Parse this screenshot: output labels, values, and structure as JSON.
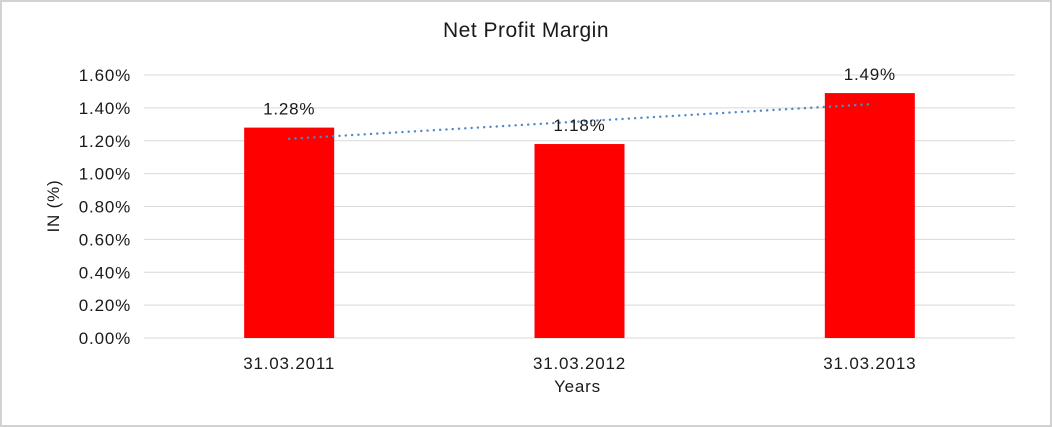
{
  "window": {
    "background": "#ffffff",
    "border_color": "#d2d2d2"
  },
  "chart_data": {
    "type": "bar",
    "title": "Net Profit Margin",
    "categories": [
      "31.03.2011",
      "31.03.2012",
      "31.03.2013"
    ],
    "values": [
      1.28,
      1.18,
      1.49
    ],
    "data_labels": [
      "1.28%",
      "1.18%",
      "1.49%"
    ],
    "xlabel": "Years",
    "ylabel": "IN (%)",
    "ylim": [
      0,
      1.6
    ],
    "yticks": [
      0,
      0.2,
      0.4,
      0.6,
      0.8,
      1.0,
      1.2,
      1.4,
      1.6
    ],
    "ytick_labels": [
      "0.00%",
      "0.20%",
      "0.40%",
      "0.60%",
      "0.80%",
      "1.00%",
      "1.20%",
      "1.40%",
      "1.60%"
    ],
    "grid": true,
    "legend": "none",
    "bar_color": "#ff0000",
    "gridline_color": "#d9d9d9",
    "text_color": "#1a1a1a",
    "trendline": {
      "type": "linear",
      "style": "dotted",
      "color": "#4e8ac9",
      "y_start": 1.212,
      "y_end": 1.422
    }
  }
}
